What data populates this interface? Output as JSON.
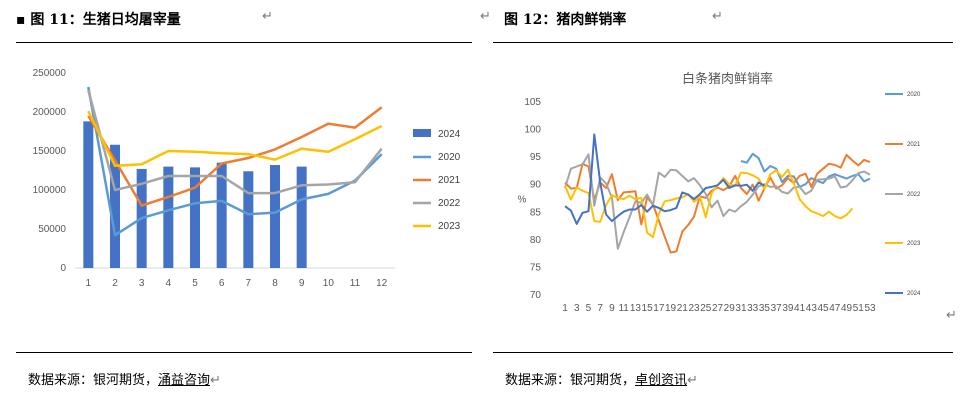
{
  "fig1": {
    "title": "图 11：生猪日均屠宰量",
    "source_prefix": "数据来源：银河期货，",
    "source_link": "涌益咨询"
  },
  "fig2": {
    "title": "图 12：猪肉鲜销率",
    "source_prefix": "数据来源：银河期货，",
    "source_link": "卓创资讯"
  },
  "chart_data": [
    {
      "type": "bar",
      "title": "",
      "categories": [
        "1",
        "2",
        "3",
        "4",
        "5",
        "6",
        "7",
        "8",
        "9",
        "10",
        "11",
        "12"
      ],
      "ylim": [
        0,
        250000
      ],
      "yticks": [
        "0",
        "50000",
        "100000",
        "150000",
        "200000",
        "250000"
      ],
      "legend_position": "right",
      "grid": false,
      "bar_series": {
        "name": "2024",
        "color": "#4472C4",
        "values": [
          188000,
          158000,
          127000,
          130000,
          129000,
          135000,
          124000,
          132000,
          130000
        ]
      },
      "line_series": [
        {
          "name": "2020",
          "color": "#5B9BD5",
          "values": [
            232000,
            42000,
            64000,
            74000,
            83000,
            86000,
            69000,
            71000,
            88000,
            95000,
            112000,
            146000
          ]
        },
        {
          "name": "2021",
          "color": "#ED7D31",
          "values": [
            195000,
            138000,
            80000,
            91000,
            103000,
            134000,
            141000,
            152000,
            168000,
            185000,
            180000,
            206000
          ]
        },
        {
          "name": "2022",
          "color": "#A5A5A5",
          "values": [
            228000,
            100000,
            108000,
            118000,
            118000,
            118000,
            96000,
            96000,
            106000,
            107000,
            110000,
            153000
          ]
        },
        {
          "name": "2023",
          "color": "#FFC000",
          "values": [
            201000,
            131000,
            133000,
            150000,
            149000,
            147000,
            146000,
            139000,
            153000,
            149000,
            165000,
            182000
          ]
        }
      ]
    },
    {
      "type": "line",
      "title": "白条猪肉鲜销率",
      "ylabel": "%",
      "ylim": [
        70,
        105
      ],
      "yticks": [
        "70",
        "75",
        "80",
        "85",
        "90",
        "95",
        "100",
        "105"
      ],
      "x_labels": [
        "1",
        "3",
        "5",
        "7",
        "9",
        "11",
        "13",
        "15",
        "17",
        "19",
        "21",
        "23",
        "25",
        "27",
        "29",
        "31",
        "33",
        "35",
        "37",
        "39",
        "41",
        "43",
        "45",
        "47",
        "49",
        "51",
        "53"
      ],
      "x_count": 53,
      "legend_position": "right",
      "grid": false,
      "series": [
        {
          "name": "2020",
          "color": "#5B9BD5",
          "x_start": 31,
          "values": [
            94.3,
            94,
            95.6,
            94.8,
            92.4,
            93.4,
            92.9,
            90.5,
            91.6,
            91.5,
            89.6,
            90.1,
            91.2,
            90.7,
            90.3,
            91.5,
            91.9,
            91.5,
            91.1,
            91.6,
            91.9,
            90.6,
            91.1
          ]
        },
        {
          "name": "2021",
          "color": "#ED7D31",
          "x_start": 1,
          "values": [
            90.4,
            89.3,
            89.4,
            93.8,
            93.3,
            87.2,
            90.4,
            89.4,
            91.9,
            87.2,
            88.6,
            88.7,
            88.8,
            82.8,
            87.7,
            86.4,
            83.5,
            80.6,
            77.7,
            77.9,
            81.5,
            82.7,
            84.2,
            87.9,
            87.6,
            88.9,
            89.5,
            89,
            89.7,
            91.6,
            89.4,
            88.3,
            90,
            87.1,
            89.3,
            91.3,
            89.3,
            89.9,
            91.2,
            90.3,
            91.6,
            92,
            89.6,
            92,
            92.9,
            93.8,
            93.6,
            93.1,
            95.4,
            94.4,
            93.5,
            94.5,
            94.1
          ]
        },
        {
          "name": "2022",
          "color": "#A5A5A5",
          "x_start": 1,
          "values": [
            89.4,
            92.9,
            93.3,
            93.7,
            95.5,
            86.2,
            91.3,
            90.2,
            87.7,
            78.4,
            81.4,
            84.1,
            87,
            86.7,
            88.2,
            86.3,
            92.2,
            91.4,
            92.7,
            92.6,
            91.6,
            90.6,
            91.2,
            89.9,
            88.3,
            85.9,
            87.1,
            84.3,
            85.5,
            85.1,
            86.1,
            86.9,
            88.2,
            89.7,
            90.1,
            89.6,
            89.7,
            88.7,
            88.4,
            89.5,
            89.6,
            88.3,
            88.9,
            90.9,
            91,
            91.1,
            91.5,
            89.5,
            89.7,
            90.8,
            92.1,
            92.4,
            91.8
          ]
        },
        {
          "name": "2023",
          "color": "#FFC000",
          "x_start": 1,
          "values": [
            89.8,
            87.3,
            89.5,
            88.9,
            88.5,
            83.4,
            83.3,
            86.3,
            88.1,
            87.6,
            87.4,
            88,
            87.4,
            87.6,
            81.3,
            80.5,
            84.7,
            87,
            87.2,
            87.5,
            87.7,
            88.3,
            86.9,
            87.8,
            84.1,
            88.5,
            89.9,
            91.2,
            90.1,
            89.8,
            92.2,
            92.1,
            91.7,
            91.1,
            89.2,
            91.9,
            92.6,
            91.4,
            92.7,
            90.3,
            87.4,
            86.1,
            85.2,
            84.8,
            84.3,
            85.1,
            84.3,
            83.9,
            84.5,
            85.7
          ]
        },
        {
          "name": "2024",
          "color": "#4472C4",
          "x_start": 1,
          "values": [
            86.1,
            85.3,
            82.9,
            84.9,
            85.2,
            99.1,
            90.4,
            84.6,
            83.4,
            84.3,
            85.1,
            85.5,
            85.5,
            86.3,
            85.1,
            86.2,
            85.8,
            85.2,
            85.4,
            85.8,
            88.6,
            88.2,
            87.4,
            88.3,
            89.4,
            89.6,
            89.9,
            90.9,
            89.4,
            89.9,
            89.8,
            90,
            88.9,
            90.4,
            89.8
          ]
        }
      ]
    }
  ]
}
